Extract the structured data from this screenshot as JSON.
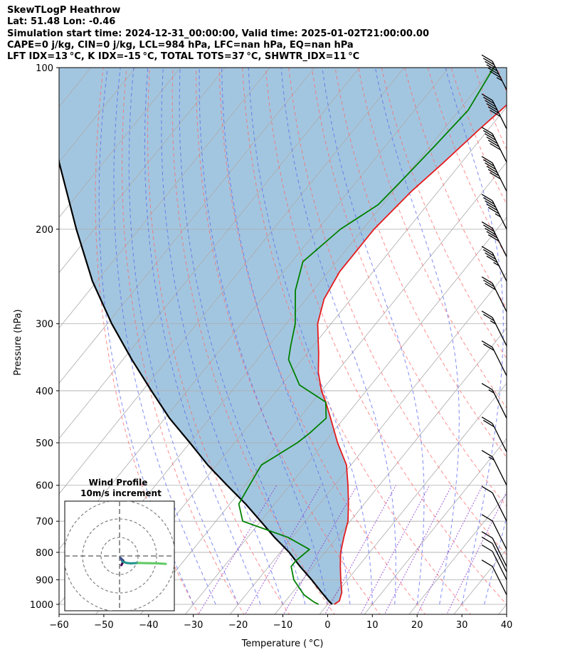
{
  "header": {
    "line1": "SkewTLogP Heathrow",
    "line2": "Lat: 51.48   Lon: -0.46",
    "line3": "Simulation start time: 2024-12-31_00:00:00, Valid time: 2025-01-02T21:00:00.00",
    "line4": "CAPE=0 j/kg, CIN=0 j/kg, LCL=984 hPa, LFC=nan hPa, EQ=nan hPa",
    "line5": "LFT IDX=13 °C, K IDX=-15 °C, TOTAL TOTS=37 °C, SHWTR_IDX=11 °C"
  },
  "chart_data": [
    {
      "type": "line",
      "subtype": "skew-T log-P diagram",
      "xlabel": "Temperature ( °C)",
      "ylabel": "Pressure (hPa)",
      "xlim": [
        -60,
        40
      ],
      "ylim": [
        1050,
        100
      ],
      "y_scale": "log",
      "x_ticks": [
        -60,
        -50,
        -40,
        -30,
        -20,
        -10,
        0,
        10,
        20,
        30,
        40
      ],
      "x_tick_labels": [
        "−60",
        "−50",
        "−40",
        "−30",
        "−20",
        "−10",
        "0",
        "10",
        "20",
        "30",
        "40"
      ],
      "y_ticks": [
        1000,
        900,
        800,
        700,
        600,
        500,
        400,
        300,
        200,
        100
      ],
      "y_tick_labels": [
        "1000",
        "900",
        "800",
        "700",
        "600",
        "500",
        "400",
        "300",
        "200",
        "100"
      ],
      "grid": true,
      "colors": {
        "temperature": "#e41a1c",
        "dewpoint": "#008000",
        "parcel": "#000000",
        "shading": "#a3c6e0",
        "dry_adiabats": "#ff6666",
        "moist_adiabats": "#5566ee",
        "mixing_ratio": "#8833cc",
        "isotherms": "#aaaaaa",
        "barbs": "#000000"
      },
      "series": [
        {
          "key": "temperature",
          "pressure": [
            1000,
            985,
            950,
            900,
            850,
            800,
            750,
            700,
            650,
            600,
            550,
            500,
            450,
            420,
            400,
            370,
            340,
            300,
            270,
            240,
            200,
            170,
            150,
            130,
            115,
            100
          ],
          "values": [
            1.5,
            2.0,
            1.0,
            -1.5,
            -4.0,
            -6.5,
            -8.5,
            -10.5,
            -13.5,
            -17.0,
            -21.0,
            -27.0,
            -33.0,
            -37.0,
            -40.0,
            -44.0,
            -47.5,
            -53.0,
            -56.0,
            -57.5,
            -57.5,
            -56.0,
            -54.0,
            -52.0,
            -50.0,
            -46.0
          ]
        },
        {
          "key": "dewpoint",
          "pressure": [
            1000,
            990,
            960,
            900,
            850,
            830,
            790,
            750,
            700,
            650,
            600,
            550,
            500,
            480,
            450,
            420,
            390,
            350,
            330,
            300,
            260,
            230,
            200,
            180,
            160,
            140,
            120,
            100
          ],
          "values": [
            -2.0,
            -3.5,
            -7.0,
            -12.0,
            -15.0,
            -15.0,
            -14.0,
            -21.0,
            -34.0,
            -38.0,
            -39.0,
            -40.0,
            -36.0,
            -35.0,
            -34.0,
            -37.0,
            -46.0,
            -53.0,
            -55.0,
            -58.0,
            -64.0,
            -67.5,
            -65.0,
            -61.0,
            -60.0,
            -59.0,
            -58.0,
            -60.0
          ]
        },
        {
          "key": "parcel",
          "pressure": [
            1000,
            984,
            950,
            900,
            850,
            800,
            750,
            700,
            650,
            600,
            550,
            500,
            450,
            400,
            350,
            300,
            250,
            200,
            150,
            100
          ],
          "values": [
            1.0,
            -0.5,
            -3.5,
            -8.0,
            -13.0,
            -18.0,
            -24.0,
            -30.0,
            -36.5,
            -44.0,
            -52.0,
            -60.0,
            -69.0,
            -78.0,
            -88.0,
            -99.0,
            -111.0,
            -124.0,
            -140.0,
            -160.0
          ]
        }
      ],
      "wind_barbs": {
        "pressure": [
          110,
          130,
          150,
          170,
          200,
          225,
          250,
          285,
          330,
          375,
          450,
          520,
          600,
          700,
          790,
          850,
          870,
          900,
          960
        ],
        "u_kt": [
          0,
          0,
          0,
          0,
          0,
          0,
          0,
          0,
          0,
          0,
          0,
          0,
          0,
          0,
          0,
          0,
          0,
          0,
          0
        ],
        "speed_kt": [
          65,
          60,
          60,
          60,
          55,
          50,
          45,
          30,
          25,
          20,
          15,
          20,
          15,
          10,
          10,
          10,
          10,
          10,
          10
        ]
      }
    },
    {
      "type": "line",
      "subtype": "hodograph",
      "title": "Wind Profile",
      "subtitle": "10m/s increment",
      "ring_increment": 10,
      "rings": [
        10,
        20,
        30
      ],
      "grid": true,
      "colormap": [
        "#440154",
        "#3b528b",
        "#21918c",
        "#5ec962"
      ],
      "u": [
        1.0,
        1.5,
        2.0,
        2.0,
        1.5,
        1.0,
        0.5,
        1.5,
        3.0,
        4.0,
        6.0,
        10.0,
        15.0,
        20.0,
        25.0
      ],
      "v": [
        -5.0,
        -4.0,
        -3.0,
        -2.5,
        -2.0,
        -1.5,
        -1.0,
        -3.0,
        -3.5,
        -3.8,
        -4.0,
        -3.8,
        -3.9,
        -4.0,
        -4.3
      ]
    }
  ]
}
